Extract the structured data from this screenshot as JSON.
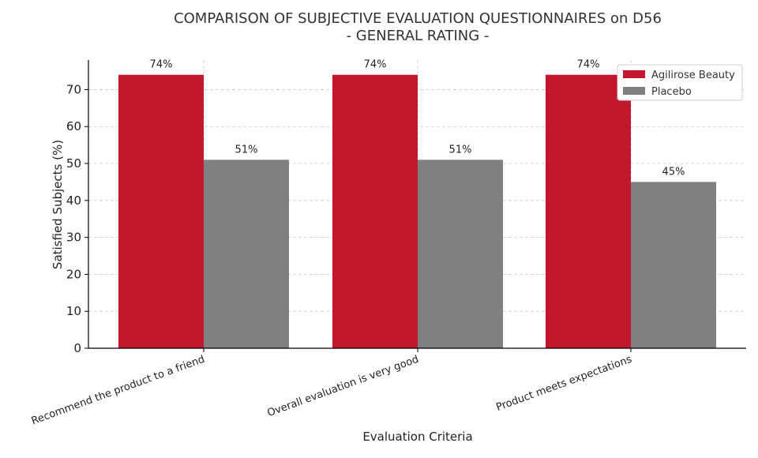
{
  "chart_data": {
    "type": "bar",
    "title_lines": [
      "COMPARISON OF SUBJECTIVE EVALUATION QUESTIONNAIRES on D56",
      "- GENERAL RATING -"
    ],
    "xlabel": "Evaluation Criteria",
    "ylabel": "Satisfied Subjects (%)",
    "categories": [
      "Recommend the product to a friend",
      "Overall evaluation is very good",
      "Product meets expectations"
    ],
    "series": [
      {
        "name": "Agilirose Beauty",
        "values": [
          74,
          74,
          74
        ],
        "labels": [
          "74%",
          "74%",
          "74%"
        ],
        "color": "#c3172d"
      },
      {
        "name": "Placebo",
        "values": [
          51,
          51,
          45
        ],
        "labels": [
          "51%",
          "51%",
          "45%"
        ],
        "color": "#808080"
      }
    ],
    "ylim": [
      0,
      78
    ],
    "yticks": [
      0,
      10,
      20,
      30,
      40,
      50,
      60,
      70
    ],
    "grid": true,
    "legend_position": "top-right"
  }
}
